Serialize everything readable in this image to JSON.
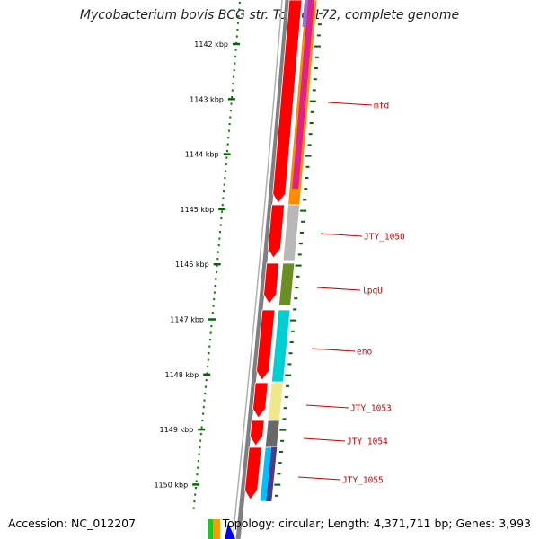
{
  "title": "Mycobacterium bovis BCG str. Tokyo 172, complete genome",
  "footer": {
    "accession": "Accession: NC_012207",
    "stats": "Topology: circular; Length: 4,371,711 bp; Genes: 3,993"
  },
  "colors": {
    "backbone": "#808080",
    "forward_strand_genes": "#ff0000",
    "tick": "#006400",
    "dots": "#008000",
    "label": "#cc0000"
  },
  "ticks": [
    "1142 kbp",
    "1143 kbp",
    "1144 kbp",
    "1145 kbp",
    "1146 kbp",
    "1147 kbp",
    "1148 kbp",
    "1149 kbp",
    "1150 kbp"
  ],
  "gene_labels": [
    {
      "name": "mfd",
      "color": "#ff8c00"
    },
    {
      "name": "JTY_1050",
      "color": "#b8b8b8"
    },
    {
      "name": "lpqU",
      "color": "#6b8e23"
    },
    {
      "name": "eno",
      "color": "#00ced1"
    },
    {
      "name": "JTY_1053",
      "color": "#f0e68c"
    },
    {
      "name": "JTY_1054",
      "color": "#696969"
    },
    {
      "name": "JTY_1055",
      "color": "#00bfff"
    }
  ]
}
